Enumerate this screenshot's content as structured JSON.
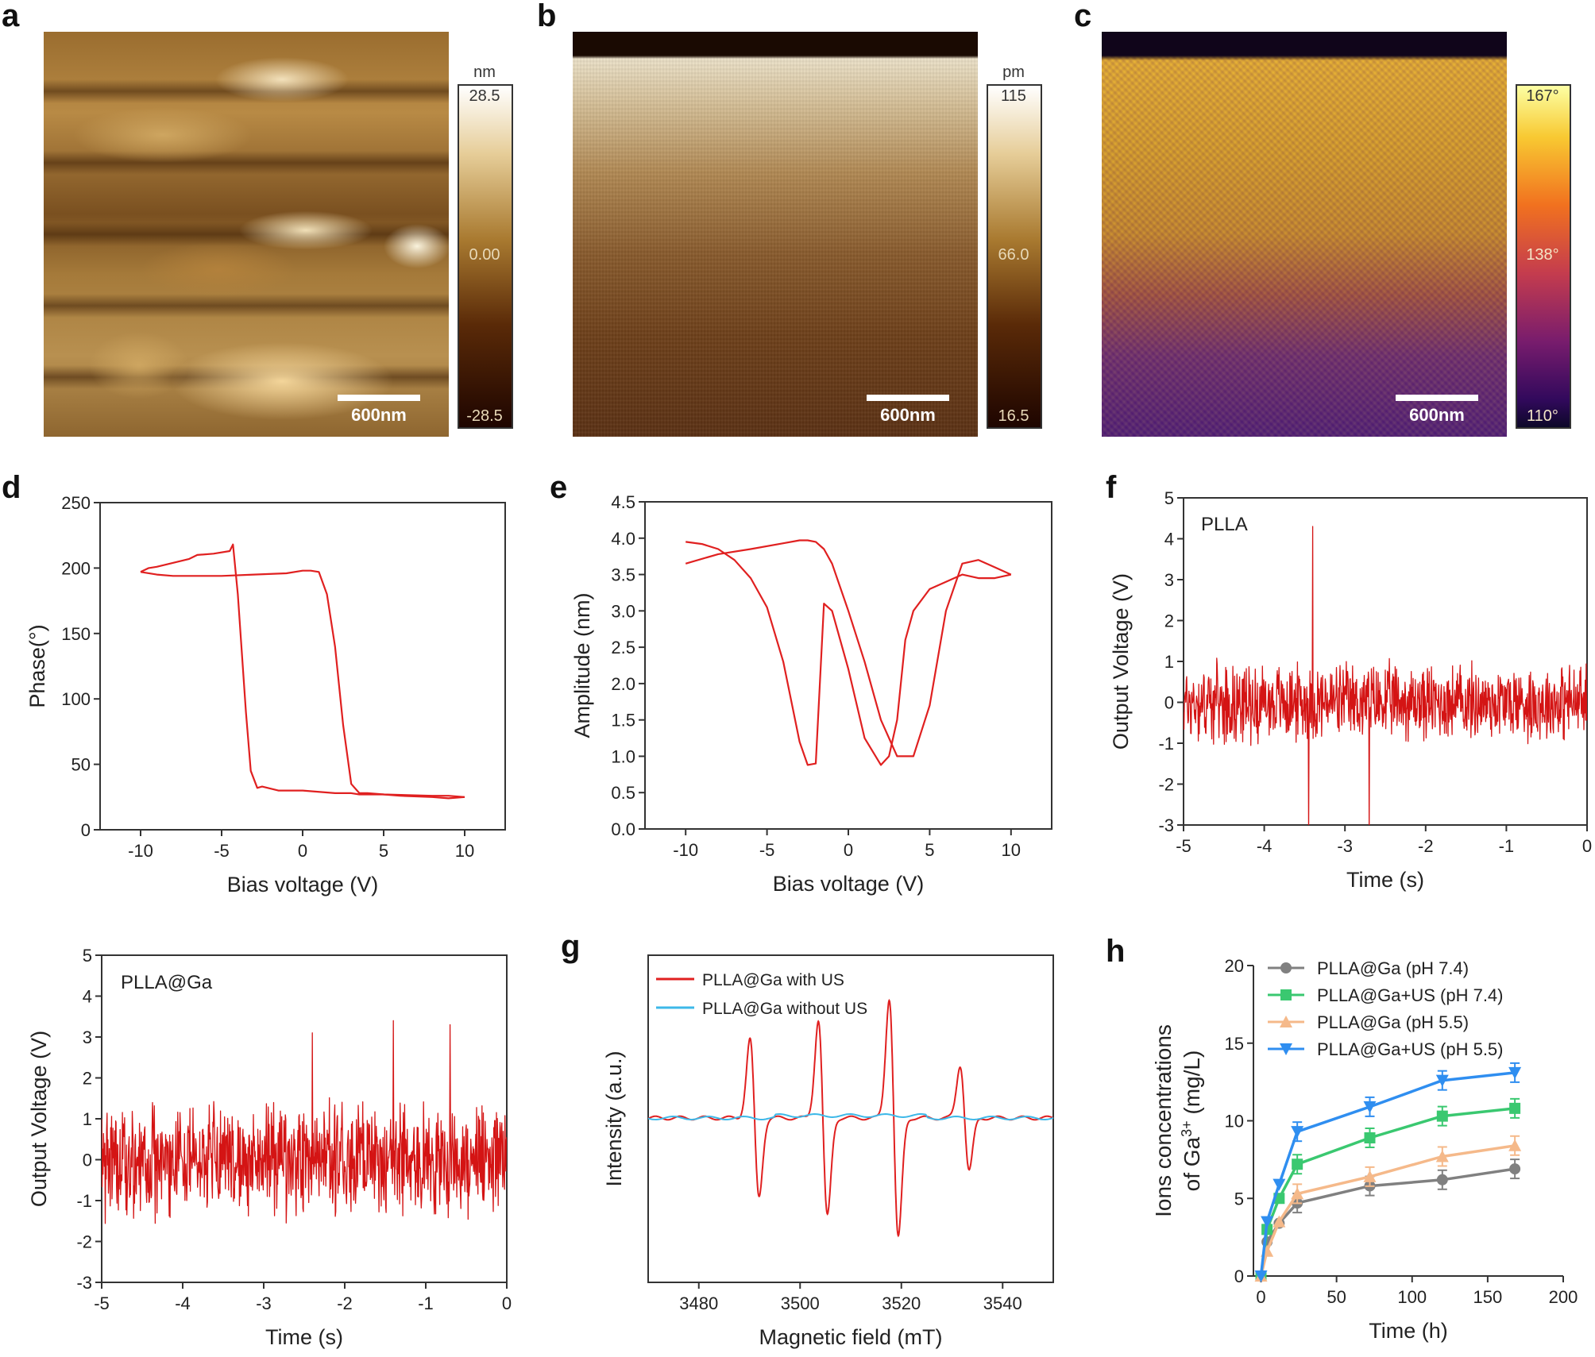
{
  "panels": {
    "a": {
      "letter": "a",
      "unit": "nm",
      "cbar_max": "28.5",
      "cbar_mid": "0.00",
      "cbar_min": "-28.5",
      "scale_bar": "600nm"
    },
    "b": {
      "letter": "b",
      "unit": "pm",
      "cbar_max": "115",
      "cbar_mid": "66.0",
      "cbar_min": "16.5",
      "scale_bar": "600nm"
    },
    "c": {
      "letter": "c",
      "cbar_max": "167°",
      "cbar_mid": "138°",
      "cbar_min": "110°",
      "scale_bar": "600nm"
    },
    "g_letter": "g",
    "h_letter": "h",
    "d_letter": "d",
    "e_letter": "e",
    "f_letter": "f"
  },
  "colors": {
    "red": "#e02020",
    "trace_red": "#d41414",
    "cyan": "#3db8e8",
    "gray": "#808080",
    "green": "#3ac870",
    "peach": "#f5b98a",
    "blue": "#2f8ef0"
  },
  "chart_data": [
    {
      "id": "d",
      "type": "line",
      "xlabel": "Bias voltage (V)",
      "ylabel": "Phase(°)",
      "xlim": [
        -12.5,
        12.5
      ],
      "ylim": [
        0,
        250
      ],
      "xticks": [
        -10,
        -5,
        0,
        5,
        10
      ],
      "yticks": [
        0,
        50,
        100,
        150,
        200,
        250
      ],
      "series": [
        {
          "x": [
            -10,
            -9.5,
            -9,
            -7,
            -6.5,
            -5.5,
            -4.5,
            -4.3,
            -4,
            -3.5,
            -3.2,
            -2.8,
            -2.5,
            -1.5,
            0,
            2,
            3,
            3.5,
            5,
            6,
            8,
            9,
            10
          ],
          "y": [
            197,
            200,
            201,
            207,
            210,
            211,
            213,
            218,
            180,
            90,
            45,
            32,
            33,
            30,
            30,
            28,
            28,
            27,
            27,
            26,
            25,
            24,
            25
          ]
        },
        {
          "x": [
            10,
            9,
            8,
            5,
            4,
            3.5,
            3,
            2.5,
            2,
            1.5,
            1,
            0.5,
            0,
            -1,
            -3,
            -5,
            -6,
            -8,
            -9,
            -10
          ],
          "y": [
            25,
            26,
            26,
            27,
            28,
            28,
            35,
            80,
            140,
            180,
            197,
            198,
            198,
            196,
            195,
            194,
            194,
            194,
            195,
            197
          ]
        }
      ]
    },
    {
      "id": "e",
      "type": "line",
      "xlabel": "Bias voltage (V)",
      "ylabel": "Amplitude (nm)",
      "xlim": [
        -12.5,
        12.5
      ],
      "ylim": [
        0,
        4.5
      ],
      "xticks": [
        -10,
        -5,
        0,
        5,
        10
      ],
      "yticks": [
        0.0,
        0.5,
        1.0,
        1.5,
        2.0,
        2.5,
        3.0,
        3.5,
        4.0,
        4.5
      ],
      "series": [
        {
          "x": [
            -10,
            -8,
            -6,
            -4,
            -3,
            -2.5,
            -2,
            -1.5,
            -1,
            0,
            1,
            2,
            3,
            4,
            5,
            6,
            7,
            8,
            9,
            10
          ],
          "y": [
            3.65,
            3.78,
            3.85,
            3.93,
            3.97,
            3.97,
            3.95,
            3.85,
            3.65,
            3.0,
            2.3,
            1.5,
            1.0,
            1.0,
            1.7,
            3.0,
            3.65,
            3.7,
            3.6,
            3.5
          ]
        },
        {
          "x": [
            10,
            9,
            8,
            7,
            6,
            5,
            4,
            3.5,
            3,
            2.5,
            2,
            1,
            0,
            -1,
            -1.5,
            -2,
            -2.5,
            -3,
            -4,
            -5,
            -6,
            -7,
            -8,
            -9,
            -10
          ],
          "y": [
            3.5,
            3.45,
            3.45,
            3.5,
            3.4,
            3.3,
            3.0,
            2.6,
            1.5,
            1.0,
            0.88,
            1.25,
            2.2,
            3.0,
            3.1,
            0.9,
            0.88,
            1.2,
            2.3,
            3.05,
            3.45,
            3.7,
            3.85,
            3.92,
            3.95
          ]
        }
      ]
    },
    {
      "id": "f",
      "type": "line",
      "annotation": "PLLA",
      "xlabel": "Time (s)",
      "ylabel": "Output Voltage (V)",
      "xlim": [
        -5,
        0
      ],
      "ylim": [
        -3,
        5
      ],
      "xticks": [
        -5,
        -4,
        -3,
        -2,
        -1,
        0
      ],
      "yticks": [
        -3,
        -2,
        -1,
        0,
        1,
        2,
        3,
        4,
        5
      ],
      "noise": {
        "n": 900,
        "amp": 1.1,
        "spikes": [
          {
            "x": -3.4,
            "y": 4.3
          },
          {
            "x": -3.45,
            "y": -3.2
          },
          {
            "x": -2.7,
            "y": -3.2
          }
        ]
      }
    },
    {
      "id": "f2",
      "type": "line",
      "annotation": "PLLA@Ga",
      "xlabel": "Time (s)",
      "ylabel": "Output Voltage (V)",
      "xlim": [
        -5,
        0
      ],
      "ylim": [
        -3,
        5
      ],
      "xticks": [
        -5,
        -4,
        -3,
        -2,
        -1,
        0
      ],
      "yticks": [
        -3,
        -2,
        -1,
        0,
        1,
        2,
        3,
        4,
        5
      ],
      "noise": {
        "n": 900,
        "amp": 1.6,
        "spikes": [
          {
            "x": -1.4,
            "y": 3.4
          },
          {
            "x": -0.7,
            "y": 3.3
          },
          {
            "x": -2.4,
            "y": 3.1
          }
        ]
      }
    },
    {
      "id": "g",
      "type": "line",
      "xlabel": "Magnetic field (mT)",
      "ylabel": "Intensity (a.u.)",
      "xlim": [
        3470,
        3550
      ],
      "xticks": [
        3480,
        3500,
        3520,
        3540
      ],
      "series": [
        {
          "name": "PLLA@Ga with US",
          "color": "#e02020",
          "peaks": [
            3491,
            3504.5,
            3518.5,
            3532.5
          ],
          "heights": [
            0.66,
            0.82,
            1.0,
            0.44
          ]
        },
        {
          "name": "PLLA@Ga without US",
          "color": "#3db8e8",
          "peaks": []
        }
      ]
    },
    {
      "id": "h",
      "type": "line",
      "xlabel": "Time (h)",
      "ylabel_line1": "Ions concentrations",
      "ylabel_line2": "of Ga",
      "ylabel_sup": "3+",
      "ylabel_unit": " (mg/L)",
      "xlim": [
        -5,
        200
      ],
      "ylim": [
        0,
        20
      ],
      "xticks": [
        0,
        50,
        100,
        150,
        200
      ],
      "yticks": [
        0,
        5,
        10,
        15,
        20
      ],
      "series": [
        {
          "name": "PLLA@Ga (pH 7.4)",
          "marker": "circle",
          "color": "#808080",
          "x": [
            0,
            4,
            12,
            24,
            72,
            120,
            168
          ],
          "y": [
            0,
            2.2,
            3.4,
            4.7,
            5.8,
            6.2,
            6.9
          ]
        },
        {
          "name": "PLLA@Ga+US (pH 7.4)",
          "marker": "square",
          "color": "#3ac870",
          "x": [
            0,
            4,
            12,
            24,
            72,
            120,
            168
          ],
          "y": [
            0,
            3.0,
            5.0,
            7.2,
            8.9,
            10.3,
            10.8
          ]
        },
        {
          "name": "PLLA@Ga (pH 5.5)",
          "marker": "triangle-up",
          "color": "#f5b98a",
          "x": [
            0,
            4,
            12,
            24,
            72,
            120,
            168
          ],
          "y": [
            0,
            1.6,
            3.5,
            5.3,
            6.4,
            7.7,
            8.4
          ]
        },
        {
          "name": "PLLA@Ga+US (pH 5.5)",
          "marker": "triangle-down",
          "color": "#2f8ef0",
          "x": [
            0,
            4,
            12,
            24,
            72,
            120,
            168
          ],
          "y": [
            0,
            3.5,
            5.9,
            9.3,
            10.9,
            12.6,
            13.1
          ]
        }
      ]
    }
  ]
}
